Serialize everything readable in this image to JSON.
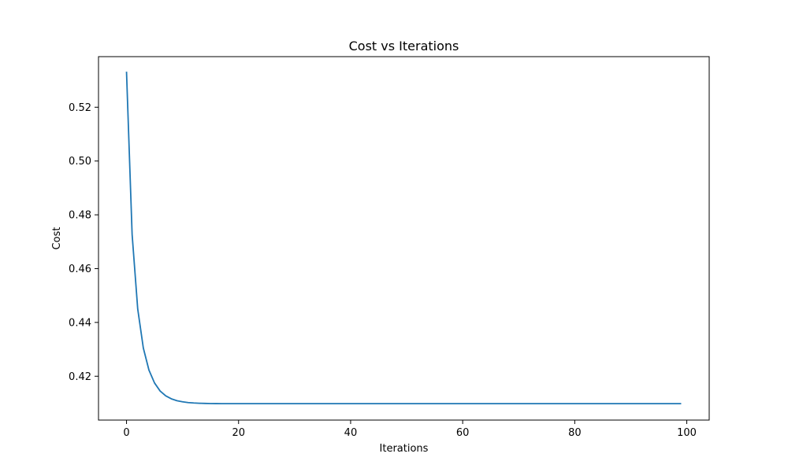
{
  "chart_data": {
    "type": "line",
    "title": "Cost vs Iterations",
    "xlabel": "Iterations",
    "ylabel": "Cost",
    "xlim": [
      -5,
      104
    ],
    "ylim": [
      0.4037,
      0.5388
    ],
    "xticks": [
      0,
      20,
      40,
      60,
      80,
      100
    ],
    "xtick_labels": [
      "0",
      "20",
      "40",
      "60",
      "80",
      "100"
    ],
    "yticks": [
      0.42,
      0.44,
      0.46,
      0.48,
      0.5,
      0.52
    ],
    "ytick_labels": [
      "0.42",
      "0.44",
      "0.46",
      "0.48",
      "0.50",
      "0.52"
    ],
    "grid": false,
    "series": [
      {
        "color": "#1f77b4",
        "x_start": 0,
        "x_end": 99,
        "values": [
          0.5332,
          0.4727,
          0.445,
          0.4305,
          0.4223,
          0.4175,
          0.4145,
          0.4127,
          0.4116,
          0.4109,
          0.4105,
          0.4102,
          0.41005,
          0.40995,
          0.4099,
          0.40985,
          0.40982,
          0.4098,
          0.4098,
          0.4098
        ]
      }
    ]
  },
  "colors": {
    "line": "#1f77b4",
    "axes": "#000000",
    "background": "#ffffff"
  }
}
